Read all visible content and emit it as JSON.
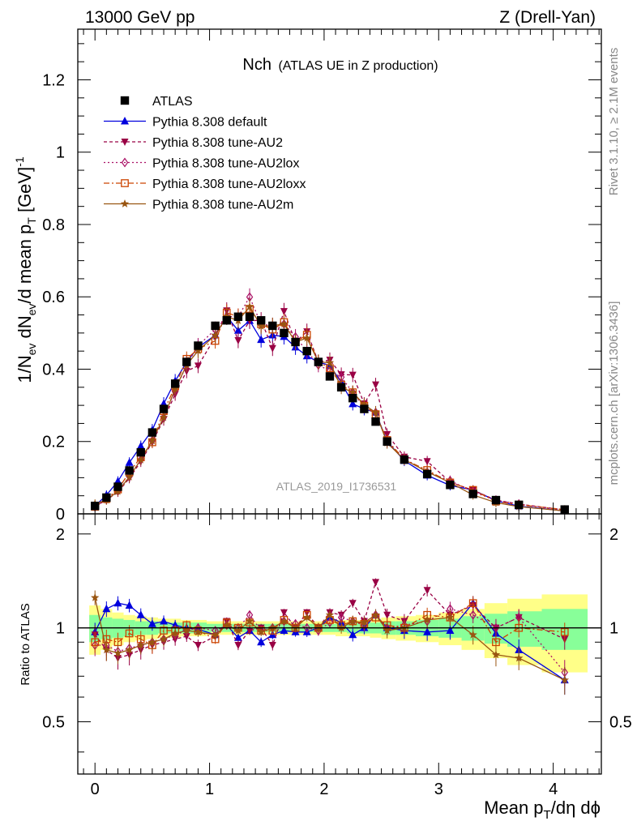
{
  "header": {
    "left": "13000 GeV pp",
    "right": "Z (Drell-Yan)"
  },
  "title": {
    "main": "Nch",
    "sub": "(ATLAS UE in Z production)"
  },
  "watermark": "ATLAS_2019_I1736531",
  "side_labels": {
    "rivet": "Rivet 3.1.10, ≥ 2.1M events",
    "mcplots": "mcplots.cern.ch [arXiv:1306.3436]"
  },
  "axes": {
    "ylabel_top": "1/N_ev dN_ev/d mean p_T [GeV]^-1",
    "ylabel_bottom": "Ratio to ATLAS",
    "xlabel": "Mean p_T/dη dϕ"
  },
  "colors": {
    "atlas": "#000000",
    "default": "#0000dd",
    "AU2": "#990044",
    "AU2lox": "#aa1166",
    "AU2loxx": "#cc4400",
    "AU2m": "#995511",
    "band_yellow": "#ffff88",
    "band_green": "#88ff99"
  },
  "chart_data": {
    "type": "line",
    "xlim": [
      -0.15,
      4.42
    ],
    "ylim": [
      0,
      1.34
    ],
    "ratio_ylim": [
      0.34,
      2.32
    ],
    "ratio_scale": "log",
    "yticks": [
      "0",
      "0.2",
      "0.4",
      "0.6",
      "0.8",
      "1",
      "1.2"
    ],
    "xticks": [
      "0",
      "1",
      "2",
      "3",
      "4"
    ],
    "ratio_yticks": [
      "0.5",
      "1",
      "2"
    ],
    "legend_position": "top-left",
    "x": [
      0.0,
      0.1,
      0.2,
      0.3,
      0.4,
      0.5,
      0.6,
      0.7,
      0.8,
      0.9,
      1.05,
      1.15,
      1.25,
      1.35,
      1.45,
      1.55,
      1.65,
      1.75,
      1.85,
      1.95,
      2.05,
      2.15,
      2.25,
      2.35,
      2.45,
      2.55,
      2.7,
      2.9,
      3.1,
      3.3,
      3.5,
      3.7,
      4.1
    ],
    "atlas": {
      "name": "ATLAS",
      "values": [
        0.022,
        0.045,
        0.075,
        0.12,
        0.17,
        0.225,
        0.29,
        0.36,
        0.42,
        0.465,
        0.52,
        0.535,
        0.545,
        0.545,
        0.535,
        0.52,
        0.5,
        0.475,
        0.45,
        0.42,
        0.38,
        0.35,
        0.32,
        0.29,
        0.255,
        0.2,
        0.15,
        0.11,
        0.08,
        0.055,
        0.038,
        0.025,
        0.012
      ]
    },
    "band_yellow": [
      0.18,
      0.15,
      0.12,
      0.1,
      0.09,
      0.08,
      0.07,
      0.07,
      0.06,
      0.06,
      0.05,
      0.05,
      0.05,
      0.05,
      0.05,
      0.05,
      0.05,
      0.05,
      0.05,
      0.05,
      0.05,
      0.06,
      0.06,
      0.06,
      0.07,
      0.08,
      0.09,
      0.1,
      0.12,
      0.15,
      0.2,
      0.24,
      0.28
    ],
    "band_green": [
      0.1,
      0.08,
      0.07,
      0.06,
      0.05,
      0.05,
      0.04,
      0.04,
      0.04,
      0.04,
      0.03,
      0.03,
      0.03,
      0.03,
      0.03,
      0.03,
      0.03,
      0.03,
      0.03,
      0.03,
      0.03,
      0.03,
      0.04,
      0.04,
      0.04,
      0.05,
      0.05,
      0.06,
      0.07,
      0.09,
      0.11,
      0.13,
      0.15
    ],
    "series": [
      {
        "name": "Pythia 8.308 default",
        "key": "default",
        "marker": "triangle-up",
        "dash": "",
        "ratio": [
          0.97,
          1.15,
          1.2,
          1.18,
          1.1,
          1.03,
          1.05,
          1.02,
          1.0,
          0.99,
          0.95,
          1.02,
          0.93,
          0.98,
          0.9,
          0.95,
          0.98,
          0.97,
          0.97,
          1.0,
          1.08,
          1.04,
          0.95,
          1.0,
          1.1,
          1.0,
          0.98,
          0.97,
          0.98,
          1.2,
          0.96,
          0.85,
          0.68
        ]
      },
      {
        "name": "Pythia 8.308 tune-AU2",
        "key": "AU2",
        "marker": "triangle-down",
        "dash": "4,3",
        "ratio": [
          0.95,
          0.85,
          0.8,
          0.82,
          0.85,
          0.88,
          0.9,
          0.92,
          0.94,
          0.88,
          0.94,
          1.05,
          0.88,
          0.98,
          1.0,
          0.88,
          1.12,
          1.0,
          1.12,
          1.0,
          1.12,
          1.1,
          1.2,
          1.05,
          1.4,
          1.1,
          1.05,
          1.32,
          1.1,
          1.18,
          1.0,
          1.08,
          0.92
        ]
      },
      {
        "name": "Pythia 8.308 tune-AU2lox",
        "key": "AU2lox",
        "marker": "diamond-open",
        "dash": "2,3",
        "ratio": [
          0.88,
          0.88,
          0.84,
          0.86,
          0.88,
          0.9,
          0.92,
          0.95,
          0.98,
          1.0,
          0.98,
          1.02,
          1.0,
          1.1,
          0.98,
          1.0,
          1.05,
          1.03,
          1.0,
          0.98,
          1.04,
          1.08,
          1.05,
          1.02,
          1.1,
          1.0,
          1.02,
          1.05,
          1.15,
          1.1,
          1.0,
          1.08,
          0.72
        ]
      },
      {
        "name": "Pythia 8.308 tune-AU2loxx",
        "key": "AU2loxx",
        "marker": "square-open",
        "dash": "7,3,2,3",
        "ratio": [
          0.9,
          0.92,
          0.9,
          0.96,
          0.92,
          0.88,
          0.98,
          0.98,
          1.02,
          0.98,
          0.92,
          1.04,
          1.0,
          1.04,
          0.98,
          0.98,
          1.06,
          1.0,
          1.1,
          1.0,
          1.06,
          1.02,
          1.05,
          1.03,
          1.08,
          1.02,
          1.0,
          1.1,
          1.08,
          1.2,
          0.9,
          1.0,
          0.97
        ]
      },
      {
        "name": "Pythia 8.308 tune-AU2m",
        "key": "AU2m",
        "marker": "star",
        "dash": "",
        "ratio": [
          1.25,
          0.85,
          0.83,
          0.85,
          0.88,
          0.9,
          0.92,
          0.96,
          0.98,
          0.97,
          0.95,
          1.02,
          0.98,
          1.05,
          0.97,
          1.0,
          1.05,
          1.0,
          1.08,
          1.0,
          1.1,
          1.0,
          1.05,
          1.04,
          1.1,
          0.98,
          1.0,
          1.06,
          1.08,
          0.95,
          0.82,
          0.8,
          0.68
        ]
      }
    ]
  }
}
